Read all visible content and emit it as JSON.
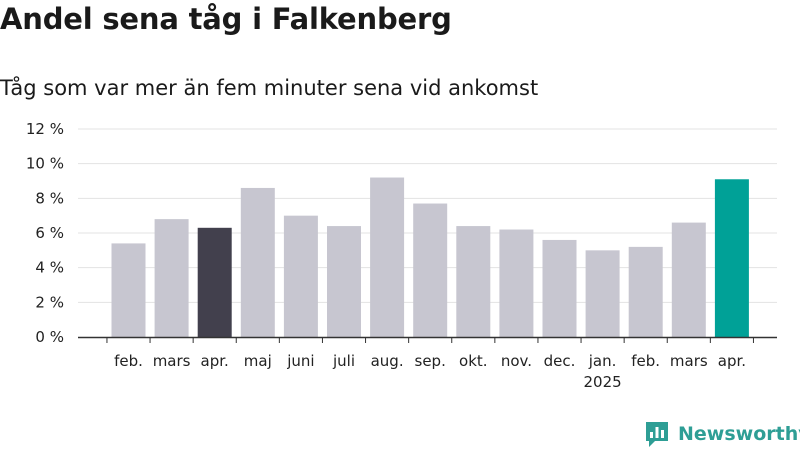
{
  "header": {
    "title": "Andel sena tåg i Falkenberg",
    "subtitle": "Tåg som var mer än fem minuter sena vid ankomst"
  },
  "brand": {
    "name": "Newsworthy",
    "color": "#2e9e95",
    "icon": "bar-chart-logo-icon"
  },
  "colors": {
    "default_bar": "#c7c6d0",
    "highlight_previous": "#42404d",
    "highlight_current": "#00a197",
    "grid": "#e3e3e3",
    "axis": "#333333"
  },
  "chart_data": {
    "type": "bar",
    "title": "Andel sena tåg i Falkenberg",
    "subtitle": "Tåg som var mer än fem minuter sena vid ankomst",
    "categories": [
      "feb.",
      "mars",
      "apr.",
      "maj",
      "juni",
      "juli",
      "aug.",
      "sep.",
      "okt.",
      "nov.",
      "dec.",
      "jan.",
      "feb.",
      "mars",
      "apr."
    ],
    "secondary_labels": [
      "",
      "",
      "",
      "",
      "",
      "",
      "",
      "",
      "",
      "",
      "",
      "2025",
      "",
      "",
      ""
    ],
    "values": [
      5.4,
      6.8,
      6.3,
      8.6,
      7.0,
      6.4,
      9.2,
      7.7,
      6.4,
      6.2,
      5.6,
      5.0,
      5.2,
      6.6,
      9.1
    ],
    "bar_styles": [
      "default",
      "default",
      "highlight_previous",
      "default",
      "default",
      "default",
      "default",
      "default",
      "default",
      "default",
      "default",
      "default",
      "default",
      "default",
      "highlight_current"
    ],
    "ylim": [
      0,
      12
    ],
    "yticks": [
      0,
      2,
      4,
      6,
      8,
      10,
      12
    ],
    "ytick_labels": [
      "0 %",
      "2 %",
      "4 %",
      "6 %",
      "8 %",
      "10 %",
      "12 %"
    ],
    "grid": true,
    "legend": "none",
    "xlabel": "",
    "ylabel": ""
  }
}
